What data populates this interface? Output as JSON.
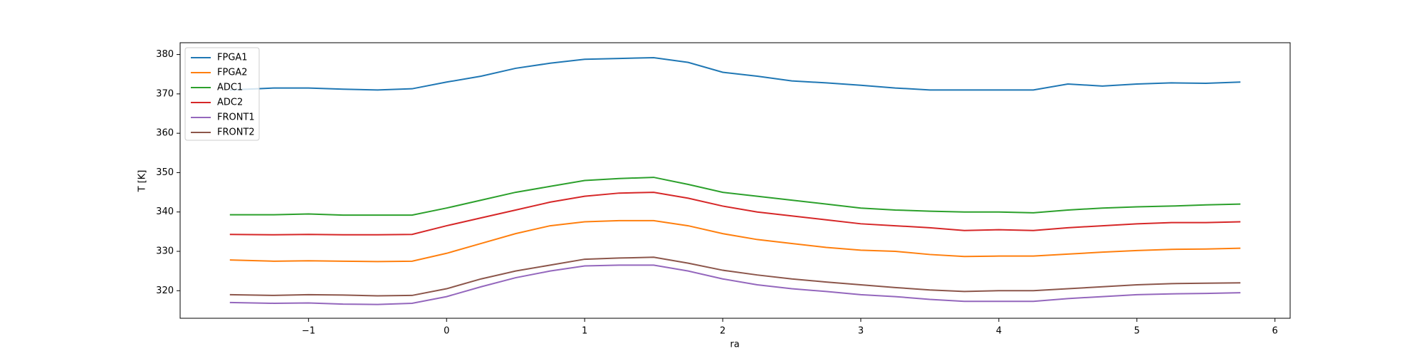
{
  "chart_data": {
    "type": "line",
    "x": [
      -1.57,
      -1.25,
      -1,
      -0.75,
      -0.5,
      -0.25,
      0,
      0.25,
      0.5,
      0.75,
      1,
      1.25,
      1.5,
      1.75,
      2,
      2.25,
      2.5,
      2.75,
      3,
      3.25,
      3.5,
      3.75,
      4,
      4.25,
      4.5,
      4.75,
      5,
      5.25,
      5.5,
      5.75
    ],
    "series": [
      {
        "name": "FPGA1",
        "color": "#1f77b4",
        "values": [
          371,
          371.5,
          371.5,
          371.2,
          371,
          371.3,
          373,
          374.5,
          376.5,
          377.8,
          378.8,
          379,
          379.2,
          378,
          375.5,
          374.5,
          373.3,
          372.8,
          372.2,
          371.5,
          371,
          371,
          371,
          371,
          372.5,
          372,
          372.5,
          372.8,
          372.7,
          373
        ]
      },
      {
        "name": "FPGA2",
        "color": "#ff7f0e",
        "values": [
          327.8,
          327.5,
          327.6,
          327.5,
          327.4,
          327.5,
          329.5,
          332,
          334.5,
          336.5,
          337.5,
          337.8,
          337.8,
          336.5,
          334.5,
          333,
          332,
          331,
          330.3,
          330,
          329.2,
          328.7,
          328.8,
          328.8,
          329.3,
          329.8,
          330.2,
          330.5,
          330.6,
          330.8
        ]
      },
      {
        "name": "ADC1",
        "color": "#2ca02c",
        "values": [
          339.3,
          339.3,
          339.5,
          339.2,
          339.2,
          339.2,
          341,
          343,
          345,
          346.5,
          348,
          348.5,
          348.8,
          347,
          345,
          344,
          343,
          342,
          341,
          340.5,
          340.2,
          340,
          340,
          339.8,
          340.5,
          341,
          341.3,
          341.5,
          341.8,
          342
        ]
      },
      {
        "name": "ADC2",
        "color": "#d62728",
        "values": [
          334.3,
          334.2,
          334.3,
          334.2,
          334.2,
          334.3,
          336.5,
          338.5,
          340.5,
          342.5,
          344,
          344.8,
          345,
          343.5,
          341.5,
          340,
          339,
          338,
          337,
          336.5,
          336,
          335.3,
          335.5,
          335.3,
          336,
          336.5,
          337,
          337.3,
          337.3,
          337.5
        ]
      },
      {
        "name": "FRONT1",
        "color": "#9467bd",
        "values": [
          317,
          316.8,
          316.9,
          316.6,
          316.5,
          316.8,
          318.5,
          321,
          323.3,
          325,
          326.3,
          326.5,
          326.5,
          325,
          323,
          321.5,
          320.5,
          319.8,
          319,
          318.5,
          317.8,
          317.3,
          317.3,
          317.3,
          318,
          318.5,
          319,
          319.2,
          319.3,
          319.5
        ]
      },
      {
        "name": "FRONT2",
        "color": "#8c564b",
        "values": [
          319,
          318.8,
          319,
          318.9,
          318.7,
          318.8,
          320.5,
          323,
          325,
          326.5,
          328,
          328.3,
          328.5,
          327,
          325.2,
          324,
          323,
          322.2,
          321.5,
          320.8,
          320.2,
          319.8,
          320,
          320,
          320.5,
          321,
          321.5,
          321.8,
          321.9,
          322
        ]
      }
    ],
    "xlabel": "ra",
    "ylabel": "T [K]",
    "xlim": [
      -1.93,
      6.11
    ],
    "ylim": [
      313,
      383
    ],
    "xticks": [
      {
        "value": -1,
        "label": "−1"
      },
      0,
      1,
      2,
      3,
      4,
      5,
      6
    ],
    "yticks": [
      320,
      330,
      340,
      350,
      360,
      370,
      380
    ],
    "legend": "upper left",
    "grid": false
  }
}
